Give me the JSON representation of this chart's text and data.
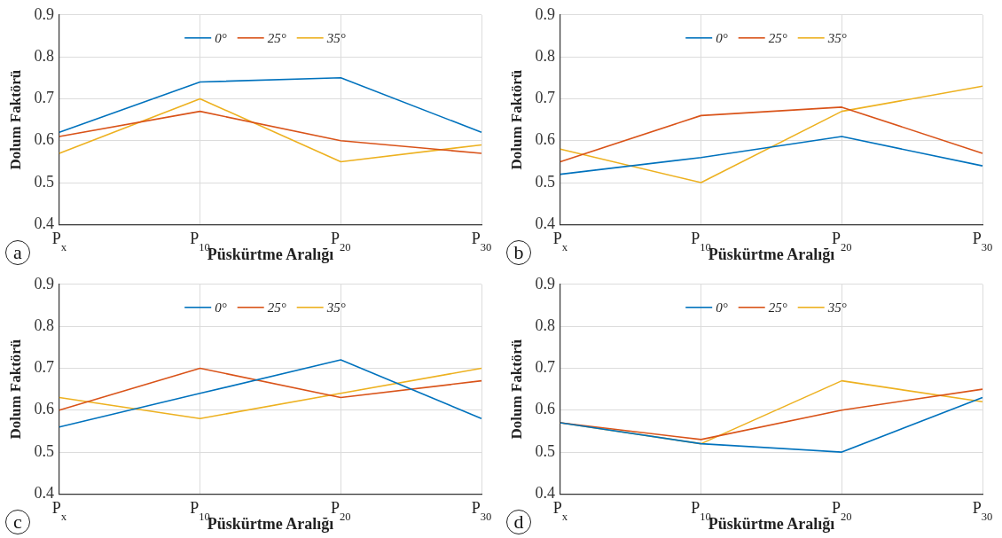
{
  "chart_data": [
    {
      "type": "line",
      "categories": [
        "P$_{x}$",
        "P$_{10}$",
        "P$_{20}$",
        "P$_{30}$"
      ],
      "xlabel": "Püskürtme Aralığı",
      "ylabel": "Dolum Faktörü",
      "ylim": [
        0.4,
        0.9
      ],
      "yticks": [
        0.4,
        0.5,
        0.6,
        0.7,
        0.8,
        0.9
      ],
      "grid": true,
      "legend": "top",
      "marker": "none",
      "annotations": [
        "a"
      ],
      "series": [
        {
          "name": "0°",
          "color": "#0072bd",
          "values": [
            0.62,
            0.74,
            0.75,
            0.62
          ]
        },
        {
          "name": "25°",
          "color": "#d95319",
          "values": [
            0.61,
            0.67,
            0.6,
            0.57
          ]
        },
        {
          "name": "35°",
          "color": "#edb120",
          "values": [
            0.57,
            0.7,
            0.55,
            0.59
          ]
        }
      ]
    },
    {
      "type": "line",
      "categories": [
        "P$_{x}$",
        "P$_{10}$",
        "P$_{20}$",
        "P$_{30}$"
      ],
      "xlabel": "Püskürtme Aralığı",
      "ylabel": "Dolum Faktörü",
      "ylim": [
        0.4,
        0.9
      ],
      "yticks": [
        0.4,
        0.5,
        0.6,
        0.7,
        0.8,
        0.9
      ],
      "grid": true,
      "legend": "top",
      "marker": "none",
      "annotations": [
        "b"
      ],
      "series": [
        {
          "name": "0°",
          "color": "#0072bd",
          "values": [
            0.52,
            0.56,
            0.61,
            0.54
          ]
        },
        {
          "name": "25°",
          "color": "#d95319",
          "values": [
            0.55,
            0.66,
            0.68,
            0.57
          ]
        },
        {
          "name": "35°",
          "color": "#edb120",
          "values": [
            0.58,
            0.5,
            0.67,
            0.73
          ]
        }
      ]
    },
    {
      "type": "line",
      "categories": [
        "P$_{x}$",
        "P$_{10}$",
        "P$_{20}$",
        "P$_{30}$"
      ],
      "xlabel": "Püskürtme Aralığı",
      "ylabel": "Dolum Faktörü",
      "ylim": [
        0.4,
        0.9
      ],
      "yticks": [
        0.4,
        0.5,
        0.6,
        0.7,
        0.8,
        0.9
      ],
      "grid": true,
      "legend": "top",
      "marker": "none",
      "annotations": [
        "c"
      ],
      "series": [
        {
          "name": "0°",
          "color": "#0072bd",
          "values": [
            0.56,
            0.64,
            0.72,
            0.58
          ]
        },
        {
          "name": "25°",
          "color": "#d95319",
          "values": [
            0.6,
            0.7,
            0.63,
            0.67
          ]
        },
        {
          "name": "35°",
          "color": "#edb120",
          "values": [
            0.63,
            0.58,
            0.64,
            0.7
          ]
        }
      ]
    },
    {
      "type": "line",
      "categories": [
        "P$_{x}$",
        "P$_{10}$",
        "P$_{20}$",
        "P$_{30}$"
      ],
      "xlabel": "Püskürtme Aralığı",
      "ylabel": "Dolum Faktörü",
      "ylim": [
        0.4,
        0.9
      ],
      "yticks": [
        0.4,
        0.5,
        0.6,
        0.7,
        0.8,
        0.9
      ],
      "grid": true,
      "legend": "top",
      "marker": "none",
      "annotations": [
        "d"
      ],
      "series": [
        {
          "name": "0°",
          "color": "#0072bd",
          "values": [
            0.57,
            0.52,
            0.5,
            0.63
          ]
        },
        {
          "name": "25°",
          "color": "#d95319",
          "values": [
            0.57,
            0.53,
            0.6,
            0.65
          ]
        },
        {
          "name": "35°",
          "color": "#edb120",
          "values": [
            0.57,
            0.52,
            0.67,
            0.62
          ]
        }
      ]
    }
  ]
}
